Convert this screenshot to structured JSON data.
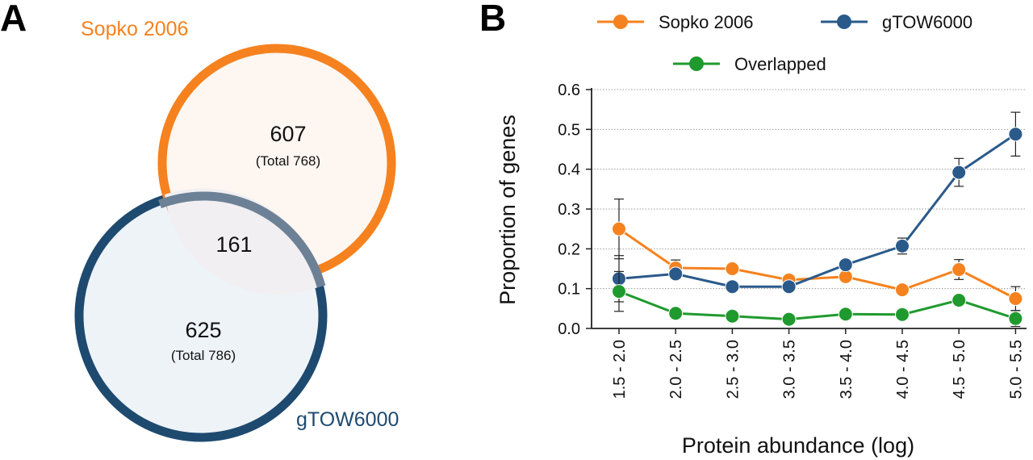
{
  "panel_a": {
    "letter": "A",
    "set1_name": "Sopko 2006",
    "set2_name": "gTOW6000",
    "set1_only": "607",
    "set1_total": "(Total 768)",
    "overlap": "161",
    "set2_only": "625",
    "set2_total": "(Total 786)",
    "colors": {
      "set1": "#f5821f",
      "set2": "#1e4a70",
      "set1_fill": "#fdf6f1",
      "set2_fill": "#eef3f8",
      "overlap_fill": "#f1eff2"
    }
  },
  "panel_b": {
    "letter": "B"
  },
  "chart_data": {
    "type": "line",
    "title": "",
    "xlabel": "Protein abundance (log)",
    "ylabel": "Proportion of genes",
    "categories": [
      "1.5 - 2.0",
      "2.0 - 2.5",
      "2.5 - 3.0",
      "3.0 - 3.5",
      "3.5 - 4.0",
      "4.0 - 4.5",
      "4.5 - 5.0",
      "5.0 - 5.5"
    ],
    "ylim": [
      0,
      0.6
    ],
    "yticks": [
      "0.0",
      "0.1",
      "0.2",
      "0.3",
      "0.4",
      "0.5",
      "0.6"
    ],
    "grid": true,
    "legend_position": "top",
    "series": [
      {
        "name": "Sopko 2006",
        "color": "#f5821f",
        "values": [
          0.25,
          0.152,
          0.15,
          0.122,
          0.13,
          0.097,
          0.148,
          0.075
        ],
        "errors": [
          0.075,
          0.02,
          0.008,
          0.006,
          0.008,
          0.008,
          0.025,
          0.03
        ]
      },
      {
        "name": "gTOW6000",
        "color": "#2a5a8a",
        "values": [
          0.125,
          0.137,
          0.105,
          0.105,
          0.16,
          0.207,
          0.392,
          0.488
        ],
        "errors": [
          0.058,
          0.012,
          0.006,
          0.005,
          0.006,
          0.02,
          0.035,
          0.055
        ]
      },
      {
        "name": "Overlapped",
        "color": "#1f9a2e",
        "values": [
          0.093,
          0.038,
          0.031,
          0.023,
          0.036,
          0.035,
          0.071,
          0.025
        ],
        "errors": [
          0.05,
          0.004,
          0.003,
          0.004,
          0.004,
          0.004,
          0.012,
          0.02
        ]
      }
    ]
  }
}
